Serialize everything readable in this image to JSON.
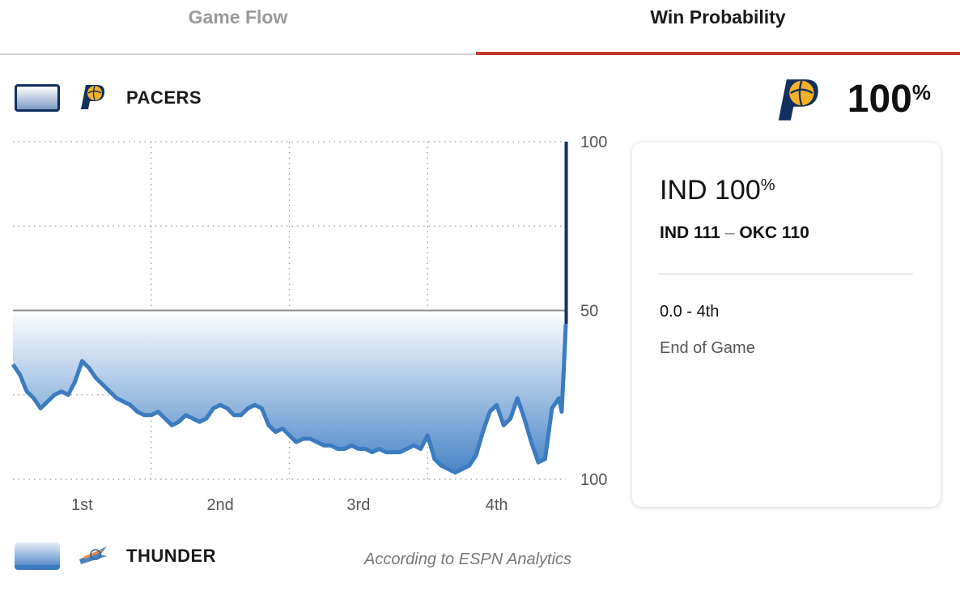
{
  "tabs": [
    {
      "label": "Game Flow",
      "active": false
    },
    {
      "label": "Win Probability",
      "active": true
    }
  ],
  "colors": {
    "accent": "#c0392b",
    "pacers_navy": "#12305e",
    "pacers_gold": "#f5b227",
    "line_blue": "#3b7bc0"
  },
  "legend": {
    "top": {
      "team": "PACERS",
      "logo_icon": "pacers-logo-icon"
    },
    "bottom": {
      "team": "THUNDER",
      "logo_icon": "thunder-logo-icon"
    }
  },
  "headline": {
    "value": "100",
    "unit": "%",
    "logo_icon": "pacers-logo-icon"
  },
  "card": {
    "team_abbr": "IND",
    "prob_value": "100",
    "prob_unit": "%",
    "score_home": "IND 111",
    "score_sep": "–",
    "score_away": "OKC 110",
    "clock": "0.0 - 4th",
    "status": "End of Game"
  },
  "credit": "According to ESPN Analytics",
  "chart_data": {
    "type": "area",
    "x_unit": "quarters elapsed",
    "xlim": [
      0,
      4
    ],
    "quarter_labels": [
      "1st",
      "2nd",
      "3rd",
      "4th"
    ],
    "y_tick_labels": [
      "100",
      "50",
      "100"
    ],
    "ylim": [
      0,
      100
    ],
    "reference_line": 50,
    "grid": true,
    "legend_placement": "top and bottom",
    "series": [
      {
        "name": "PACERS",
        "values": [
          [
            0.0,
            34
          ],
          [
            0.05,
            31
          ],
          [
            0.1,
            26
          ],
          [
            0.15,
            24
          ],
          [
            0.2,
            21
          ],
          [
            0.25,
            23
          ],
          [
            0.3,
            25
          ],
          [
            0.35,
            26
          ],
          [
            0.4,
            25
          ],
          [
            0.45,
            29
          ],
          [
            0.5,
            35
          ],
          [
            0.55,
            33
          ],
          [
            0.6,
            30
          ],
          [
            0.65,
            28
          ],
          [
            0.7,
            26
          ],
          [
            0.75,
            24
          ],
          [
            0.8,
            23
          ],
          [
            0.85,
            22
          ],
          [
            0.9,
            20
          ],
          [
            0.95,
            19
          ],
          [
            1.0,
            19
          ],
          [
            1.05,
            20
          ],
          [
            1.1,
            18
          ],
          [
            1.15,
            16
          ],
          [
            1.2,
            17
          ],
          [
            1.25,
            19
          ],
          [
            1.3,
            18
          ],
          [
            1.35,
            17
          ],
          [
            1.4,
            18
          ],
          [
            1.45,
            21
          ],
          [
            1.5,
            22
          ],
          [
            1.55,
            21
          ],
          [
            1.6,
            19
          ],
          [
            1.65,
            19
          ],
          [
            1.7,
            21
          ],
          [
            1.75,
            22
          ],
          [
            1.8,
            21
          ],
          [
            1.85,
            16
          ],
          [
            1.9,
            14
          ],
          [
            1.95,
            15
          ],
          [
            2.0,
            13
          ],
          [
            2.05,
            11
          ],
          [
            2.1,
            12
          ],
          [
            2.15,
            12
          ],
          [
            2.2,
            11
          ],
          [
            2.25,
            10
          ],
          [
            2.3,
            10
          ],
          [
            2.35,
            9
          ],
          [
            2.4,
            9
          ],
          [
            2.45,
            10
          ],
          [
            2.5,
            9
          ],
          [
            2.55,
            9
          ],
          [
            2.6,
            8
          ],
          [
            2.65,
            9
          ],
          [
            2.7,
            8
          ],
          [
            2.75,
            8
          ],
          [
            2.8,
            8
          ],
          [
            2.85,
            9
          ],
          [
            2.9,
            10
          ],
          [
            2.95,
            9
          ],
          [
            3.0,
            13
          ],
          [
            3.05,
            6
          ],
          [
            3.1,
            4
          ],
          [
            3.15,
            3
          ],
          [
            3.2,
            2
          ],
          [
            3.25,
            3
          ],
          [
            3.3,
            4
          ],
          [
            3.35,
            7
          ],
          [
            3.4,
            14
          ],
          [
            3.45,
            20
          ],
          [
            3.5,
            22
          ],
          [
            3.55,
            16
          ],
          [
            3.6,
            18
          ],
          [
            3.65,
            24
          ],
          [
            3.7,
            18
          ],
          [
            3.75,
            11
          ],
          [
            3.8,
            5
          ],
          [
            3.85,
            6
          ],
          [
            3.9,
            21
          ],
          [
            3.95,
            24
          ],
          [
            3.97,
            20
          ],
          [
            3.985,
            32
          ],
          [
            4.0,
            46
          ],
          [
            4.003,
            100
          ]
        ]
      }
    ]
  }
}
